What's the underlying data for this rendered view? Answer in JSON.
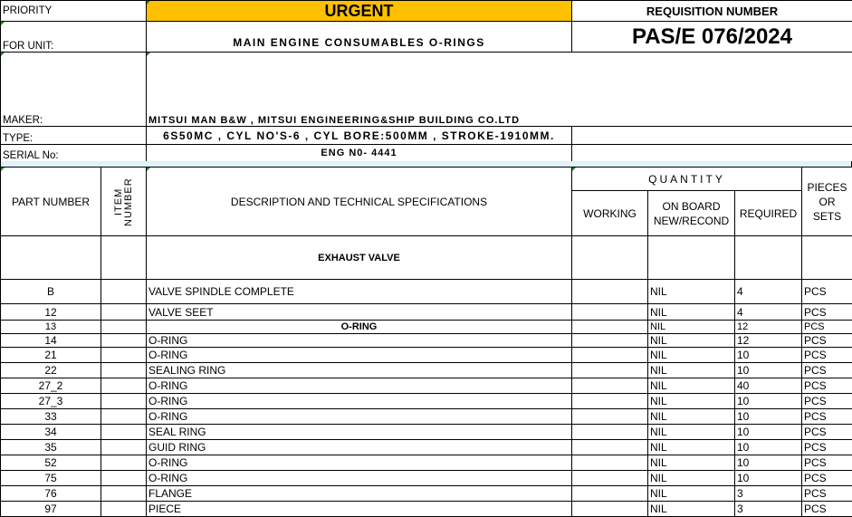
{
  "header": {
    "priority_label": "PRIORITY",
    "priority_value": "URGENT",
    "priority_color": "#ffc000",
    "requisition_label": "REQUISITION NUMBER",
    "requisition_number": "PAS/E 076/2024",
    "for_unit_label": "FOR UNIT:",
    "for_unit_value": "MAIN ENGINE CONSUMABLES O-RINGS",
    "maker_label": "MAKER:",
    "maker_value": "MITSUI MAN B&W , MITSUI ENGINEERING&SHIP BUILDING CO.LTD",
    "type_label": "TYPE:",
    "type_value": "6S50MC , CYL NO'S-6 , CYL BORE:500MM , STROKE-1910MM.",
    "serial_label": "SERIAL No:",
    "serial_value": "ENG N0- 4441"
  },
  "table": {
    "columns": {
      "part_number": "PART NUMBER",
      "item_number": "ITEM NUMBER",
      "description": "DESCRIPTION AND TECHNICAL SPECIFICATIONS",
      "quantity": "QUANTITY",
      "working": "WORKING",
      "on_board": "ON BOARD NEW/RECOND",
      "required": "REQUIRED",
      "pieces": "PIECES OR SETS"
    },
    "section": "EXHAUST VALVE",
    "rows": [
      {
        "part": "B",
        "item": "",
        "desc": "VALVE SPINDLE COMPLETE",
        "working": "",
        "onboard": "NIL",
        "required": "4",
        "unit": "PCS"
      },
      {
        "part": "12",
        "item": "",
        "desc": "VALVE SEET",
        "working": "",
        "onboard": "NIL",
        "required": "4",
        "unit": "PCS"
      },
      {
        "part": "13",
        "item": "",
        "desc": "O-RING",
        "working": "",
        "onboard": "NIL",
        "required": "12",
        "unit": "PCS",
        "center_bold": true
      },
      {
        "part": "14",
        "item": "",
        "desc": "O-RING",
        "working": "",
        "onboard": "NIL",
        "required": "12",
        "unit": "PCS"
      },
      {
        "part": "21",
        "item": "",
        "desc": "O-RING",
        "working": "",
        "onboard": "NIL",
        "required": "10",
        "unit": "PCS"
      },
      {
        "part": "22",
        "item": "",
        "desc": "SEALING RING",
        "working": "",
        "onboard": "NIL",
        "required": "10",
        "unit": "PCS"
      },
      {
        "part": "27_2",
        "item": "",
        "desc": "O-RING",
        "working": "",
        "onboard": "NIL",
        "required": "40",
        "unit": "PCS"
      },
      {
        "part": "27_3",
        "item": "",
        "desc": "O-RING",
        "working": "",
        "onboard": "NIL",
        "required": "10",
        "unit": "PCS"
      },
      {
        "part": "33",
        "item": "",
        "desc": "O-RING",
        "working": "",
        "onboard": "NIL",
        "required": "10",
        "unit": "PCS"
      },
      {
        "part": "34",
        "item": "",
        "desc": "SEAL RING",
        "working": "",
        "onboard": "NIL",
        "required": "10",
        "unit": "PCS"
      },
      {
        "part": "35",
        "item": "",
        "desc": "GUID RING",
        "working": "",
        "onboard": "NIL",
        "required": "10",
        "unit": "PCS"
      },
      {
        "part": "52",
        "item": "",
        "desc": "O-RING",
        "working": "",
        "onboard": "NIL",
        "required": "10",
        "unit": "PCS"
      },
      {
        "part": "75",
        "item": "",
        "desc": "O-RING",
        "working": "",
        "onboard": "NIL",
        "required": "10",
        "unit": "PCS"
      },
      {
        "part": "76",
        "item": "",
        "desc": "FLANGE",
        "working": "",
        "onboard": "NIL",
        "required": "3",
        "unit": "PCS"
      },
      {
        "part": "97",
        "item": "",
        "desc": "PIECE",
        "working": "",
        "onboard": "NIL",
        "required": "3",
        "unit": "PCS"
      }
    ]
  }
}
